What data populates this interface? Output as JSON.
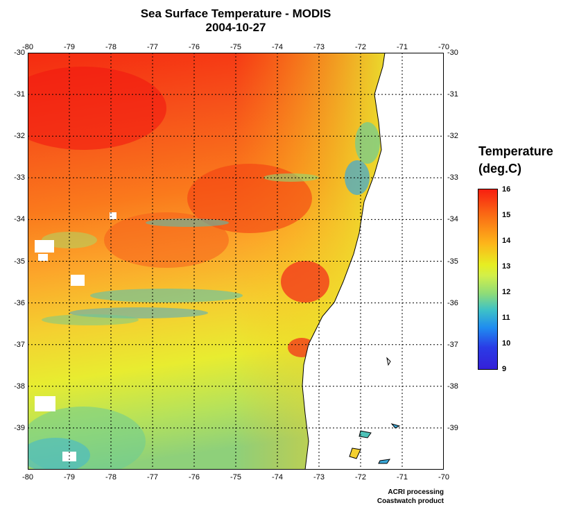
{
  "title": "Sea Surface Temperature - MODIS",
  "date": "2004-10-27",
  "map": {
    "lon_range": [
      -80,
      -70
    ],
    "lat_range": [
      -40,
      -30
    ],
    "lon_ticks": [
      "-80",
      "-79",
      "-78",
      "-77",
      "-76",
      "-75",
      "-74",
      "-73",
      "-72",
      "-71",
      "-70"
    ],
    "lat_ticks": [
      "-30",
      "-31",
      "-32",
      "-33",
      "-34",
      "-35",
      "-36",
      "-37",
      "-38",
      "-39"
    ],
    "gridlines": "dotted",
    "land_color": "#ffffff",
    "coastline_color": "#000000"
  },
  "legend": {
    "title_line1": "Temperature",
    "title_line2": "(deg.C)",
    "labels": [
      "16",
      "15",
      "14",
      "13",
      "12",
      "11",
      "10",
      "9"
    ],
    "max": 16,
    "min": 9,
    "colors": [
      "#f81e10",
      "#fa6a14",
      "#fdb51a",
      "#e6ee22",
      "#8edc78",
      "#3ec2c6",
      "#1f8cf0",
      "#3520d8"
    ]
  },
  "credits": {
    "line1": "ACRI processing",
    "line2": "Coastwatch product"
  }
}
